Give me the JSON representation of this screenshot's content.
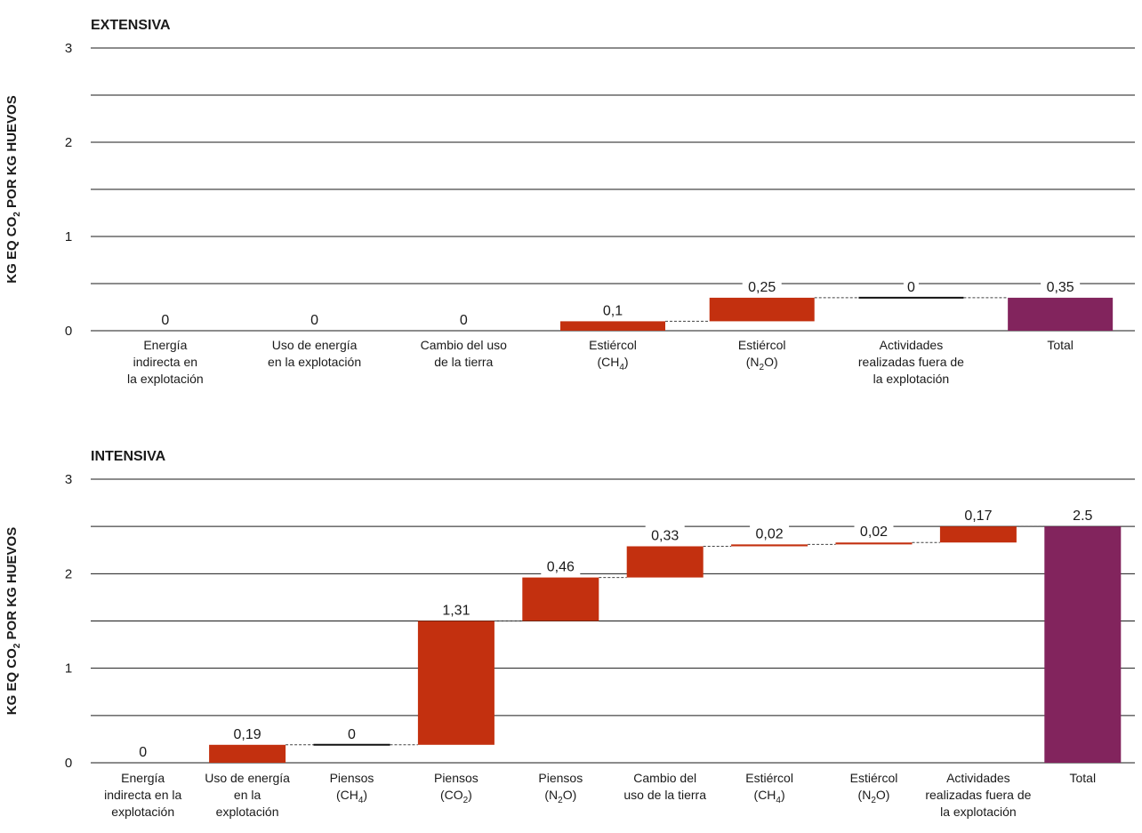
{
  "colors": {
    "bar": "#c3300f",
    "total": "#82245d",
    "zero": "#111111"
  },
  "chart_data": [
    {
      "type": "bar",
      "title": "EXTENSIVA",
      "ylabel": [
        "KG EQ CO",
        "2",
        " POR KG HUEVOS"
      ],
      "ylim": [
        0,
        3
      ],
      "yticks": [
        "0",
        "1",
        "2",
        "3"
      ],
      "grid": true,
      "categories": [
        [
          "Energía",
          "indirecta en",
          "la explotación"
        ],
        [
          "Uso de energía",
          "en la explotación"
        ],
        [
          "Cambio del uso",
          "de la tierra"
        ],
        [
          "Estiércol",
          "(CH|4|)"
        ],
        [
          "Estiércol",
          "(N|2|O)"
        ],
        [
          "Actividades",
          "realizadas fuera de",
          "la explotación"
        ],
        [
          "Total"
        ]
      ],
      "values": [
        0,
        0,
        0,
        0.1,
        0.25,
        0,
        0.35
      ],
      "labels": [
        "0",
        "0",
        "0",
        "0,1",
        "0,25",
        "0",
        "0,35"
      ]
    },
    {
      "type": "bar",
      "title": "INTENSIVA",
      "ylabel": [
        "KG EQ CO",
        "2",
        " POR KG HUEVOS"
      ],
      "ylim": [
        0,
        3
      ],
      "yticks": [
        "0",
        "1",
        "2",
        "3"
      ],
      "grid": true,
      "categories": [
        [
          "Energía",
          "indirecta en la",
          "explotación"
        ],
        [
          "Uso de energía",
          "en la",
          "explotación"
        ],
        [
          "Piensos",
          "(CH|4|)"
        ],
        [
          "Piensos",
          "(CO|2|)"
        ],
        [
          "Piensos",
          "(N|2|O)"
        ],
        [
          "Cambio del",
          "uso de la tierra"
        ],
        [
          "Estiércol",
          "(CH|4|)"
        ],
        [
          "Estiércol",
          "(N|2|O)"
        ],
        [
          "Actividades",
          "realizadas fuera de",
          "la explotación"
        ],
        [
          "Total"
        ]
      ],
      "values": [
        0,
        0.19,
        0,
        1.31,
        0.46,
        0.33,
        0.02,
        0.02,
        0.17,
        2.5
      ],
      "labels": [
        "0",
        "0,19",
        "0",
        "1,31",
        "0,46",
        "0,33",
        "0,02",
        "0,02",
        "0,17",
        "2.5"
      ]
    }
  ]
}
